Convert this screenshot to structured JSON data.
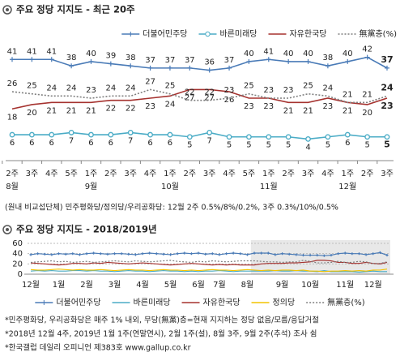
{
  "chart_data": [
    {
      "type": "line",
      "title": "주요 정당 지지도 - 최근 20주",
      "categories": [
        "2주",
        "3주",
        "4주",
        "5주",
        "1주",
        "2주",
        "3주",
        "4주",
        "1주",
        "2주",
        "3주",
        "4주",
        "5주",
        "1주",
        "2주",
        "3주",
        "4주",
        "1주",
        "2주",
        "3주"
      ],
      "months": [
        "8월",
        "9월",
        "10월",
        "11월",
        "12월"
      ],
      "ylim": [
        0,
        46
      ],
      "data_labels": true,
      "legend": "top-right",
      "series": [
        {
          "name": "더불어민주당",
          "color": "#4a7bb7",
          "marker": "plus",
          "label_position": "above",
          "values": [
            41,
            41,
            41,
            38,
            40,
            39,
            38,
            37,
            37,
            37,
            36,
            37,
            40,
            41,
            40,
            40,
            38,
            40,
            42,
            37
          ]
        },
        {
          "name": "바른미래당",
          "color": "#4bacc6",
          "marker": "circle",
          "label_position": "below",
          "values": [
            6,
            6,
            6,
            7,
            6,
            6,
            7,
            6,
            6,
            5,
            7,
            5,
            5,
            5,
            5,
            4,
            5,
            6,
            5,
            5
          ]
        },
        {
          "name": "자유한국당",
          "color": "#a5322f",
          "marker": "none",
          "label_position": "below",
          "values": [
            18,
            20,
            21,
            21,
            21,
            22,
            22,
            23,
            24,
            27,
            27,
            26,
            23,
            23,
            21,
            21,
            23,
            21,
            20,
            23
          ]
        },
        {
          "name": "無黨층(%)",
          "color": "#7f7f7f",
          "marker": "none",
          "dash": "dotted",
          "label_position": "above",
          "values": [
            26,
            25,
            24,
            24,
            23,
            24,
            24,
            27,
            25,
            22,
            22,
            23,
            25,
            23,
            23,
            25,
            24,
            21,
            21,
            24
          ]
        }
      ]
    },
    {
      "type": "line",
      "title": "주요 정당 지지도 - 2018/2019년",
      "categories": [
        "12월",
        null,
        null,
        null,
        "1월",
        null,
        null,
        null,
        "2월",
        null,
        null,
        null,
        "3월",
        null,
        null,
        null,
        "4월",
        null,
        null,
        null,
        "5월",
        null,
        null,
        null,
        "6월",
        null,
        null,
        "7월",
        null,
        null,
        null,
        "8월",
        null,
        null,
        null,
        null,
        "9월",
        null,
        null,
        null,
        "10월",
        null,
        null,
        null,
        null,
        "11월",
        null,
        null,
        null,
        "12월",
        null,
        null
      ],
      "ylim": [
        0,
        60
      ],
      "yticks": [
        0,
        20,
        40,
        60
      ],
      "grid": true,
      "data_labels": false,
      "legend": "bottom",
      "series": [
        {
          "name": "더불어민주당",
          "color": "#4a7bb7",
          "marker": "plus",
          "values": [
            38,
            40,
            39,
            38,
            40,
            39,
            40,
            38,
            40,
            41,
            40,
            39,
            40,
            40,
            39,
            38,
            40,
            41,
            40,
            39,
            38,
            40,
            41,
            40,
            41,
            39,
            40,
            38,
            40,
            41,
            40,
            38,
            41,
            41,
            41,
            38,
            40,
            39,
            38,
            37,
            37,
            37,
            36,
            37,
            40,
            41,
            40,
            40,
            38,
            40,
            42,
            37
          ]
        },
        {
          "name": "바른미래당",
          "color": "#4bacc6",
          "marker": "none",
          "values": [
            6,
            7,
            6,
            7,
            6,
            6,
            7,
            7,
            6,
            7,
            6,
            6,
            5,
            6,
            7,
            6,
            6,
            5,
            6,
            7,
            6,
            6,
            5,
            6,
            5,
            6,
            6,
            7,
            6,
            5,
            6,
            6,
            6,
            6,
            6,
            7,
            6,
            6,
            7,
            6,
            6,
            5,
            7,
            5,
            5,
            5,
            5,
            4,
            5,
            6,
            5,
            5
          ]
        },
        {
          "name": "자유한국당",
          "color": "#a5322f",
          "marker": "none",
          "values": [
            22,
            21,
            20,
            19,
            18,
            19,
            21,
            21,
            20,
            22,
            21,
            23,
            22,
            21,
            20,
            21,
            22,
            21,
            20,
            19,
            18,
            19,
            20,
            21,
            20,
            19,
            18,
            19,
            18,
            19,
            18,
            18,
            18,
            20,
            21,
            21,
            21,
            22,
            22,
            23,
            24,
            27,
            27,
            26,
            23,
            23,
            21,
            21,
            23,
            21,
            20,
            23
          ]
        },
        {
          "name": "정의당",
          "color": "#f2c300",
          "marker": "none",
          "values": [
            9,
            8,
            8,
            9,
            10,
            9,
            8,
            9,
            8,
            8,
            9,
            8,
            7,
            8,
            9,
            8,
            8,
            7,
            8,
            9,
            8,
            8,
            7,
            8,
            7,
            8,
            9,
            8,
            8,
            7,
            8,
            9,
            8,
            7,
            8,
            7,
            8,
            8,
            7,
            8,
            6,
            6,
            5,
            6,
            6,
            7,
            6,
            7,
            6,
            8,
            8,
            10
          ]
        },
        {
          "name": "無黨층(%)",
          "color": "#7f7f7f",
          "marker": "none",
          "dash": "dotted",
          "values": [
            23,
            24,
            25,
            26,
            24,
            25,
            23,
            24,
            25,
            23,
            24,
            25,
            26,
            25,
            24,
            26,
            25,
            24,
            25,
            26,
            27,
            25,
            24,
            23,
            25,
            24,
            26,
            25,
            24,
            25,
            26,
            26,
            26,
            25,
            24,
            24,
            23,
            24,
            24,
            27,
            25,
            22,
            22,
            23,
            25,
            23,
            23,
            25,
            24,
            21,
            21,
            24
          ]
        }
      ]
    }
  ],
  "note": "(원내 비교섭단체) 민주평화당/정의당/우리공화당: 12월 2주 0.5%/8%/0.2%, 3주 0.3%/10%/0.5%",
  "footnotes": [
    "*민주평화당, 우리공화당은 매주 1% 내외, 무당(無黨)층=현재 지지하는 정당 없음/모름/응답거절",
    "*2018년 12월 4주, 2019년 1월 1주(연말연시), 2월 1주(설), 8월 3주, 9월 2주(추석) 조사 쉼",
    "*한국갤럽 데일리 오피니언 제383호 www.gallup.co.kr"
  ]
}
